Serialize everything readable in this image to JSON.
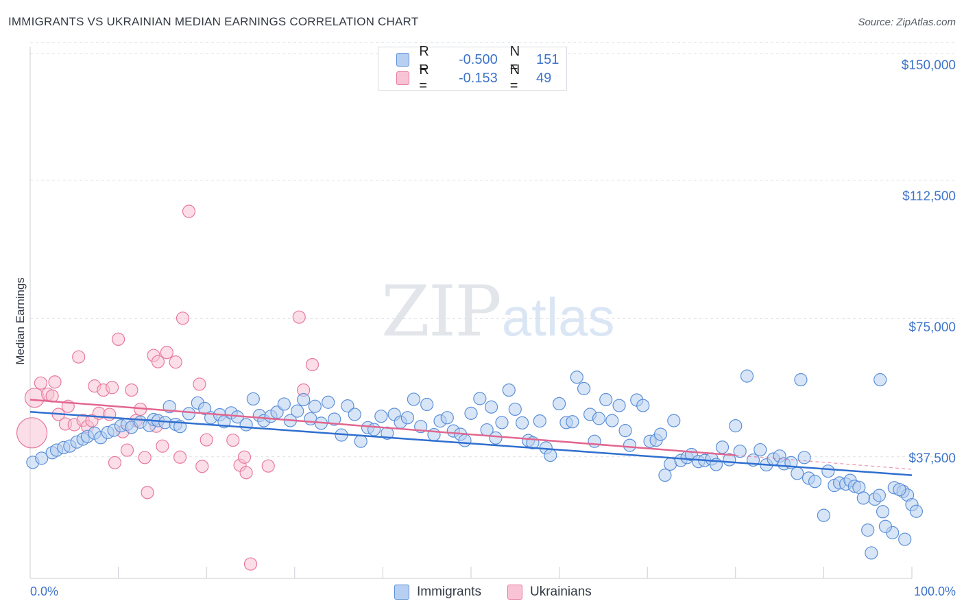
{
  "title": "IMMIGRANTS VS UKRAINIAN MEDIAN EARNINGS CORRELATION CHART",
  "source": "Source: ZipAtlas.com",
  "watermark": {
    "zip": "ZIP",
    "atlas": "atlas"
  },
  "colors": {
    "blue": "#5b8fd8",
    "blue_fill": "#b7cff1",
    "blue_line": "#2f6fcf",
    "pink": "#e8799d",
    "pink_fill": "#f8c3d4",
    "pink_line": "#e2668f",
    "axis_text": "#3d74c9",
    "grid": "#dde1e6"
  },
  "legend_top": [
    {
      "r_label": "R =",
      "r_value": "-0.500",
      "n_label": "N =",
      "n_value": "151",
      "series": "Immigrants"
    },
    {
      "r_label": "R =",
      "r_value": "-0.153",
      "n_label": "N =",
      "n_value": "49",
      "series": "Ukrainians"
    }
  ],
  "legend_bottom": [
    "Immigrants",
    "Ukrainians"
  ],
  "chart_data": {
    "type": "scatter",
    "title": "IMMIGRANTS VS UKRAINIAN MEDIAN EARNINGS CORRELATION CHART",
    "xlabel": "",
    "ylabel": "Median Earnings",
    "xlim": [
      0,
      100
    ],
    "ylim": [
      4500,
      154000
    ],
    "x_tick_labels": [
      "0.0%",
      "100.0%"
    ],
    "y_ticks": [
      37500,
      75000,
      112500,
      150000
    ],
    "y_tick_labels": [
      "$37,500",
      "$75,000",
      "$112,500",
      "$150,000"
    ],
    "grid": true,
    "legend_position": "top-center",
    "series": [
      {
        "name": "Immigrants",
        "r": -0.5,
        "n": 151,
        "trend": {
          "x": [
            0,
            100
          ],
          "y": [
            49700,
            32500
          ]
        },
        "points": [
          [
            0.3,
            36000
          ],
          [
            1.3,
            37100
          ],
          [
            2.5,
            38600
          ],
          [
            3.0,
            39300
          ],
          [
            3.8,
            40000
          ],
          [
            4.5,
            40400
          ],
          [
            5.3,
            41500
          ],
          [
            6.0,
            42300
          ],
          [
            6.5,
            43000
          ],
          [
            7.3,
            43900
          ],
          [
            8.0,
            42700
          ],
          [
            8.8,
            44100
          ],
          [
            9.5,
            44700
          ],
          [
            10.3,
            45900
          ],
          [
            11.0,
            46300
          ],
          [
            11.5,
            45500
          ],
          [
            12.5,
            46900
          ],
          [
            13.5,
            46000
          ],
          [
            14.0,
            47600
          ],
          [
            14.5,
            47300
          ],
          [
            15.3,
            46800
          ],
          [
            15.8,
            51100
          ],
          [
            16.5,
            46300
          ],
          [
            17.0,
            45700
          ],
          [
            18.0,
            49200
          ],
          [
            19.0,
            52100
          ],
          [
            19.8,
            50600
          ],
          [
            20.5,
            48100
          ],
          [
            21.5,
            48900
          ],
          [
            22.0,
            47000
          ],
          [
            22.8,
            49400
          ],
          [
            23.5,
            48300
          ],
          [
            24.5,
            46200
          ],
          [
            25.3,
            53200
          ],
          [
            26.0,
            48700
          ],
          [
            26.5,
            47300
          ],
          [
            27.3,
            48500
          ],
          [
            28.0,
            49600
          ],
          [
            28.8,
            51800
          ],
          [
            29.5,
            47300
          ],
          [
            30.3,
            49900
          ],
          [
            31.0,
            53000
          ],
          [
            31.8,
            47800
          ],
          [
            32.3,
            51200
          ],
          [
            33.0,
            46600
          ],
          [
            33.8,
            52300
          ],
          [
            34.5,
            47700
          ],
          [
            35.3,
            43400
          ],
          [
            36.0,
            51300
          ],
          [
            36.8,
            49000
          ],
          [
            37.5,
            41700
          ],
          [
            38.3,
            45400
          ],
          [
            39.0,
            44900
          ],
          [
            39.8,
            48500
          ],
          [
            40.5,
            43900
          ],
          [
            41.3,
            49000
          ],
          [
            42.0,
            46900
          ],
          [
            42.8,
            48100
          ],
          [
            43.5,
            53100
          ],
          [
            44.3,
            45700
          ],
          [
            45.0,
            51700
          ],
          [
            45.8,
            43500
          ],
          [
            46.5,
            47200
          ],
          [
            47.3,
            48100
          ],
          [
            48.0,
            44500
          ],
          [
            48.8,
            43600
          ],
          [
            49.3,
            41900
          ],
          [
            50.0,
            49300
          ],
          [
            51.0,
            53300
          ],
          [
            51.8,
            44800
          ],
          [
            52.3,
            51000
          ],
          [
            52.8,
            42600
          ],
          [
            53.5,
            46800
          ],
          [
            54.3,
            55600
          ],
          [
            55.0,
            50400
          ],
          [
            55.8,
            46700
          ],
          [
            56.5,
            41900
          ],
          [
            57.0,
            41300
          ],
          [
            57.8,
            47200
          ],
          [
            58.5,
            39900
          ],
          [
            59.0,
            37900
          ],
          [
            60.0,
            51900
          ],
          [
            60.8,
            46800
          ],
          [
            61.5,
            47000
          ],
          [
            62.0,
            59100
          ],
          [
            62.8,
            56000
          ],
          [
            63.5,
            49000
          ],
          [
            64.0,
            41700
          ],
          [
            64.5,
            47900
          ],
          [
            65.3,
            53000
          ],
          [
            66.0,
            47300
          ],
          [
            66.8,
            51400
          ],
          [
            67.5,
            44600
          ],
          [
            68.0,
            40600
          ],
          [
            68.8,
            52900
          ],
          [
            69.5,
            51400
          ],
          [
            70.3,
            41700
          ],
          [
            71.0,
            42000
          ],
          [
            71.5,
            43600
          ],
          [
            72.0,
            32500
          ],
          [
            72.6,
            35500
          ],
          [
            73.0,
            47300
          ],
          [
            73.8,
            36500
          ],
          [
            74.5,
            37300
          ],
          [
            75.0,
            38100
          ],
          [
            75.8,
            36200
          ],
          [
            76.5,
            36500
          ],
          [
            77.3,
            36900
          ],
          [
            77.8,
            35400
          ],
          [
            78.5,
            40100
          ],
          [
            79.3,
            36700
          ],
          [
            80.0,
            45900
          ],
          [
            80.5,
            39000
          ],
          [
            81.3,
            59400
          ],
          [
            82.0,
            36600
          ],
          [
            82.8,
            39400
          ],
          [
            83.5,
            35300
          ],
          [
            84.3,
            36900
          ],
          [
            85.0,
            37700
          ],
          [
            85.5,
            35600
          ],
          [
            86.3,
            35900
          ],
          [
            87.0,
            33000
          ],
          [
            87.8,
            37300
          ],
          [
            88.3,
            31700
          ],
          [
            89.0,
            30800
          ],
          [
            90.0,
            21600
          ],
          [
            90.5,
            33600
          ],
          [
            91.2,
            29700
          ],
          [
            91.8,
            30400
          ],
          [
            92.5,
            30100
          ],
          [
            93.0,
            31100
          ],
          [
            93.5,
            29500
          ],
          [
            94.0,
            29200
          ],
          [
            95.0,
            17600
          ],
          [
            96.7,
            22600
          ],
          [
            97.8,
            16900
          ],
          [
            98.0,
            29100
          ],
          [
            99.0,
            28100
          ],
          [
            99.5,
            27100
          ],
          [
            100.0,
            24500
          ],
          [
            100.5,
            22700
          ],
          [
            97.0,
            18600
          ],
          [
            99.2,
            15100
          ],
          [
            95.8,
            26000
          ],
          [
            96.3,
            27000
          ],
          [
            98.6,
            28600
          ],
          [
            87.4,
            58400
          ],
          [
            96.4,
            58400
          ],
          [
            95.4,
            11400
          ],
          [
            94.5,
            26300
          ]
        ]
      },
      {
        "name": "Ukrainians",
        "r": -0.153,
        "n": 49,
        "trend": {
          "x": [
            0,
            80
          ],
          "y": [
            53000,
            37900
          ]
        },
        "trend_dashed": {
          "x": [
            80,
            100
          ],
          "y": [
            37900,
            34100
          ]
        },
        "points": [
          [
            0.2,
            44000
          ],
          [
            0.5,
            53500
          ],
          [
            1.2,
            57500
          ],
          [
            2.0,
            54500
          ],
          [
            2.5,
            54000
          ],
          [
            2.8,
            57800
          ],
          [
            3.2,
            49000
          ],
          [
            4.0,
            46400
          ],
          [
            4.3,
            51200
          ],
          [
            5.0,
            46200
          ],
          [
            5.5,
            64600
          ],
          [
            6.0,
            47400
          ],
          [
            6.5,
            45700
          ],
          [
            7.0,
            47300
          ],
          [
            7.3,
            56700
          ],
          [
            7.8,
            49300
          ],
          [
            8.3,
            55600
          ],
          [
            9.0,
            49000
          ],
          [
            9.3,
            56300
          ],
          [
            9.6,
            35900
          ],
          [
            10.0,
            69400
          ],
          [
            10.5,
            44300
          ],
          [
            11.0,
            39300
          ],
          [
            11.5,
            55600
          ],
          [
            12.0,
            47300
          ],
          [
            12.5,
            50400
          ],
          [
            13.0,
            37300
          ],
          [
            13.3,
            27800
          ],
          [
            14.0,
            65000
          ],
          [
            14.3,
            45800
          ],
          [
            14.5,
            63300
          ],
          [
            15.0,
            40400
          ],
          [
            15.5,
            65800
          ],
          [
            16.5,
            63200
          ],
          [
            17.0,
            37400
          ],
          [
            17.3,
            75100
          ],
          [
            18.0,
            104100
          ],
          [
            19.2,
            57200
          ],
          [
            19.5,
            34900
          ],
          [
            20.0,
            42100
          ],
          [
            23.0,
            42000
          ],
          [
            23.8,
            35200
          ],
          [
            24.3,
            37400
          ],
          [
            24.5,
            33200
          ],
          [
            25.0,
            8400
          ],
          [
            27.0,
            35000
          ],
          [
            30.5,
            75400
          ],
          [
            31.0,
            55600
          ],
          [
            32.0,
            62500
          ]
        ]
      }
    ]
  }
}
